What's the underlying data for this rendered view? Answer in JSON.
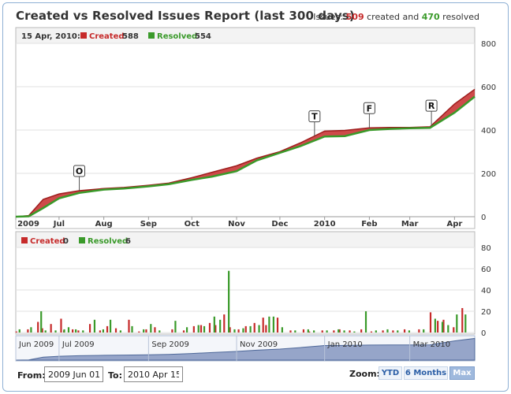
{
  "header": {
    "title": "Created vs Resolved Issues Report (last 300 days)",
    "summary_prefix": "Issues:",
    "created_total": "509",
    "summary_mid": "created and",
    "resolved_total": "470",
    "summary_suffix": "resolved"
  },
  "legend_top": {
    "date": "15 Apr, 2010:",
    "created_label": "Created",
    "created_value": "588",
    "resolved_label": "Resolved",
    "resolved_value": "554"
  },
  "legend_bottom": {
    "created_label": "Created",
    "created_value": "0",
    "resolved_label": "Resolved",
    "resolved_value": "6"
  },
  "controls": {
    "from_label": "From:",
    "from_value": "2009 Jun 01",
    "to_label": "To:",
    "to_value": "2010 Apr 15",
    "zoom_label": "Zoom:",
    "zoom_options": [
      "YTD",
      "6 Months",
      "Max"
    ],
    "zoom_selected": "Max"
  },
  "colors": {
    "created": "#c62a2a",
    "resolved": "#3a9a2a",
    "navigator_fill": "#6d83b3"
  },
  "chart_data": [
    {
      "type": "area",
      "title": "Created vs Resolved Issues Report (last 300 days)",
      "x_ticks": [
        "2009",
        "Jul",
        "Aug",
        "Sep",
        "Oct",
        "Nov",
        "Dec",
        "2010",
        "Feb",
        "Mar",
        "Apr"
      ],
      "ylim": [
        0,
        800
      ],
      "y_ticks": [
        0,
        200,
        400,
        600,
        800
      ],
      "x": [
        "2009-06-01",
        "2009-06-10",
        "2009-06-20",
        "2009-07-01",
        "2009-07-15",
        "2009-08-01",
        "2009-08-15",
        "2009-09-01",
        "2009-09-15",
        "2009-10-01",
        "2009-10-15",
        "2009-11-01",
        "2009-11-15",
        "2009-12-01",
        "2009-12-15",
        "2010-01-01",
        "2010-01-15",
        "2010-02-01",
        "2010-02-15",
        "2010-03-01",
        "2010-03-15",
        "2010-04-01",
        "2010-04-15"
      ],
      "series": [
        {
          "name": "Created",
          "values": [
            0,
            5,
            80,
            105,
            120,
            130,
            135,
            145,
            155,
            180,
            205,
            235,
            270,
            300,
            340,
            395,
            398,
            410,
            412,
            412,
            415,
            520,
            588
          ]
        },
        {
          "name": "Resolved",
          "values": [
            0,
            2,
            40,
            85,
            110,
            125,
            130,
            140,
            150,
            170,
            185,
            210,
            260,
            295,
            325,
            370,
            372,
            400,
            405,
            408,
            410,
            480,
            554
          ]
        }
      ],
      "flags": [
        {
          "label": "O",
          "date": "2009-07-15"
        },
        {
          "label": "T",
          "date": "2009-12-25"
        },
        {
          "label": "F",
          "date": "2010-02-01"
        },
        {
          "label": "R",
          "date": "2010-03-16"
        }
      ]
    },
    {
      "type": "bar",
      "ylim": [
        0,
        80
      ],
      "y_ticks": [
        0,
        20,
        40,
        60,
        80
      ],
      "series": [
        {
          "name": "Created",
          "values": [
            [
              1,
              1
            ],
            [
              9,
              3
            ],
            [
              16,
              10
            ],
            [
              19,
              4
            ],
            [
              25,
              8
            ],
            [
              32,
              13
            ],
            [
              34,
              2
            ],
            [
              40,
              3
            ],
            [
              44,
              2
            ],
            [
              52,
              8
            ],
            [
              59,
              2
            ],
            [
              64,
              6
            ],
            [
              70,
              4
            ],
            [
              79,
              12
            ],
            [
              86,
              1
            ],
            [
              91,
              3
            ],
            [
              97,
              5
            ],
            [
              109,
              3
            ],
            [
              117,
              2
            ],
            [
              124,
              6
            ],
            [
              129,
              7
            ],
            [
              135,
              9
            ],
            [
              139,
              7
            ],
            [
              145,
              17
            ],
            [
              149,
              5
            ],
            [
              155,
              3
            ],
            [
              160,
              6
            ],
            [
              166,
              9
            ],
            [
              172,
              14
            ],
            [
              174,
              7
            ],
            [
              182,
              14
            ],
            [
              191,
              2
            ],
            [
              200,
              3
            ],
            [
              204,
              1
            ],
            [
              213,
              2
            ],
            [
              221,
              2
            ],
            [
              225,
              3
            ],
            [
              232,
              2
            ],
            [
              240,
              3
            ],
            [
              247,
              1
            ],
            [
              255,
              2
            ],
            [
              262,
              2
            ],
            [
              270,
              3
            ],
            [
              280,
              3
            ],
            [
              288,
              19
            ],
            [
              293,
              11
            ],
            [
              297,
              12
            ],
            [
              304,
              5
            ],
            [
              310,
              23
            ]
          ]
        },
        {
          "name": "Resolved",
          "values": [
            [
              2,
              3
            ],
            [
              10,
              5
            ],
            [
              17,
              20
            ],
            [
              20,
              2
            ],
            [
              27,
              2
            ],
            [
              33,
              3
            ],
            [
              36,
              5
            ],
            [
              41,
              3
            ],
            [
              46,
              2
            ],
            [
              54,
              12
            ],
            [
              60,
              3
            ],
            [
              65,
              12
            ],
            [
              72,
              2
            ],
            [
              80,
              6
            ],
            [
              88,
              3
            ],
            [
              93,
              8
            ],
            [
              99,
              2
            ],
            [
              110,
              11
            ],
            [
              118,
              5
            ],
            [
              126,
              7
            ],
            [
              130,
              6
            ],
            [
              137,
              15
            ],
            [
              141,
              12
            ],
            [
              147,
              58
            ],
            [
              151,
              3
            ],
            [
              157,
              4
            ],
            [
              162,
              6
            ],
            [
              168,
              7
            ],
            [
              175,
              15
            ],
            [
              178,
              15
            ],
            [
              184,
              5
            ],
            [
              193,
              2
            ],
            [
              202,
              3
            ],
            [
              206,
              2
            ],
            [
              215,
              2
            ],
            [
              223,
              3
            ],
            [
              227,
              2
            ],
            [
              234,
              1
            ],
            [
              242,
              20
            ],
            [
              249,
              2
            ],
            [
              257,
              3
            ],
            [
              264,
              2
            ],
            [
              272,
              2
            ],
            [
              282,
              3
            ],
            [
              290,
              13
            ],
            [
              295,
              10
            ],
            [
              299,
              7
            ],
            [
              305,
              17
            ],
            [
              311,
              17
            ]
          ]
        }
      ]
    }
  ],
  "navigator": {
    "labels": [
      "Jun 2009",
      "Jul 2009",
      "Sep 2009",
      "Nov 2009",
      "Jan 2010",
      "Mar 2010"
    ]
  }
}
